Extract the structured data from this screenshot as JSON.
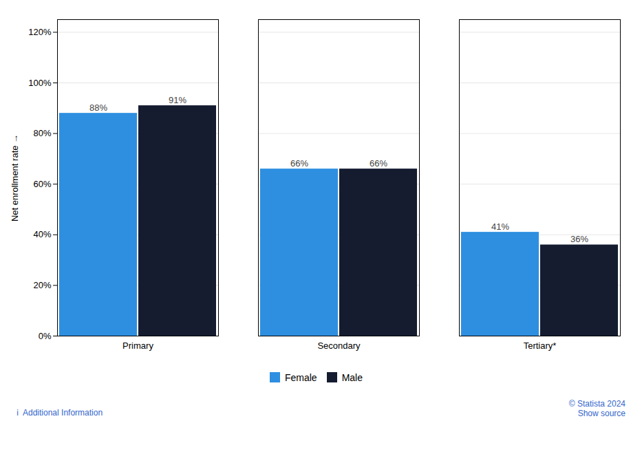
{
  "chart_data": {
    "type": "bar",
    "categories": [
      "Primary",
      "Secondary",
      "Tertiary*"
    ],
    "series": [
      {
        "name": "Female",
        "color": "#2e8fe0",
        "values": [
          88,
          66,
          41
        ],
        "value_labels": [
          "88%",
          "66%",
          "41%"
        ]
      },
      {
        "name": "Male",
        "color": "#151c30",
        "values": [
          91,
          66,
          36
        ],
        "value_labels": [
          "91%",
          "66%",
          "36%"
        ]
      }
    ],
    "ylabel": "Net enrollment rate",
    "ylim": [
      0,
      125
    ],
    "yticks": [
      {
        "value": 0,
        "label": "0%"
      },
      {
        "value": 20,
        "label": "20%"
      },
      {
        "value": 40,
        "label": "40%"
      },
      {
        "value": 60,
        "label": "60%"
      },
      {
        "value": 80,
        "label": "80%"
      },
      {
        "value": 100,
        "label": "100%"
      },
      {
        "value": 120,
        "label": "120%"
      }
    ],
    "grid": true,
    "data_labels": true,
    "legend": "bottom",
    "annotations": [
      "© Statista 2024",
      "Show source",
      "ℹ  Additional Information"
    ]
  }
}
